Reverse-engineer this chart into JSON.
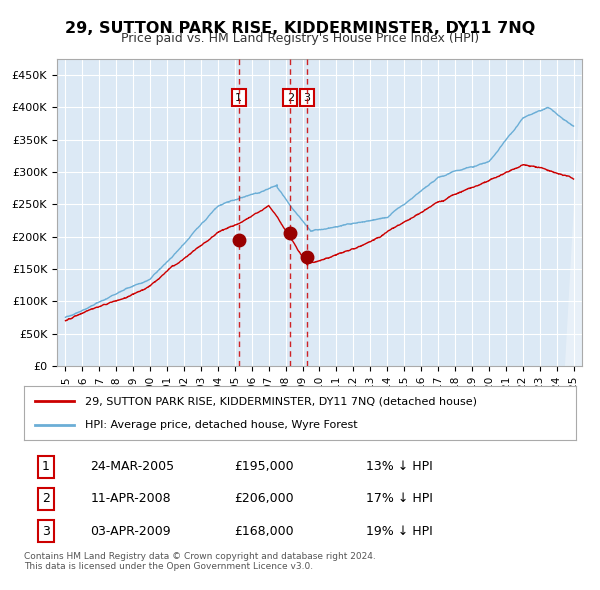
{
  "title": "29, SUTTON PARK RISE, KIDDERMINSTER, DY11 7NQ",
  "subtitle": "Price paid vs. HM Land Registry's House Price Index (HPI)",
  "legend_line1": "29, SUTTON PARK RISE, KIDDERMINSTER, DY11 7NQ (detached house)",
  "legend_line2": "HPI: Average price, detached house, Wyre Forest",
  "footer1": "Contains HM Land Registry data © Crown copyright and database right 2024.",
  "footer2": "This data is licensed under the Open Government Licence v3.0.",
  "transactions": [
    {
      "label": "1",
      "date": "24-MAR-2005",
      "price": 195000,
      "hpi_diff": "13% ↓ HPI",
      "date_num": 2005.23
    },
    {
      "label": "2",
      "date": "11-APR-2008",
      "price": 206000,
      "hpi_diff": "17% ↓ HPI",
      "date_num": 2008.28
    },
    {
      "label": "3",
      "date": "03-APR-2009",
      "price": 168000,
      "hpi_diff": "19% ↓ HPI",
      "date_num": 2009.26
    }
  ],
  "hpi_color": "#6baed6",
  "price_color": "#cc0000",
  "marker_color": "#990000",
  "dashed_color": "#cc0000",
  "bg_color": "#dce9f5",
  "grid_color": "#ffffff",
  "border_color": "#aaaaaa",
  "ylim": [
    0,
    475000
  ],
  "yticks": [
    0,
    50000,
    100000,
    150000,
    200000,
    250000,
    300000,
    350000,
    400000,
    450000
  ],
  "xlim_start": 1994.5,
  "xlim_end": 2025.5,
  "xticks": [
    1995,
    1996,
    1997,
    1998,
    1999,
    2000,
    2001,
    2002,
    2003,
    2004,
    2005,
    2006,
    2007,
    2008,
    2009,
    2010,
    2011,
    2012,
    2013,
    2014,
    2015,
    2016,
    2017,
    2018,
    2019,
    2020,
    2021,
    2022,
    2023,
    2024,
    2025
  ]
}
